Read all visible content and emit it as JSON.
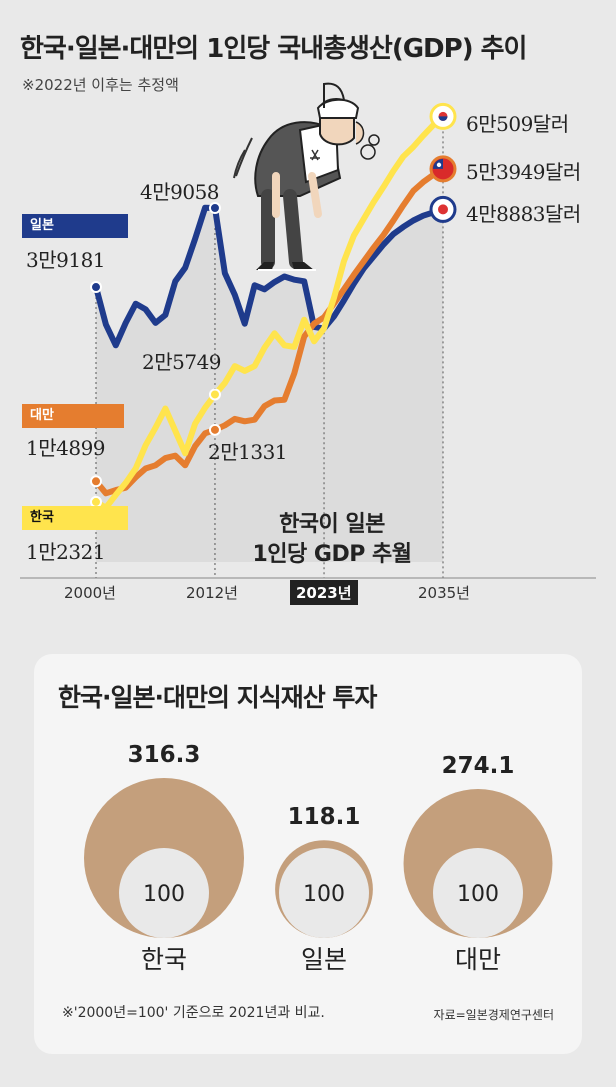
{
  "title": "한국·일본·대만의 1인당 국내총생산(GDP) 추이",
  "note": "※2022년 이후는 추정액",
  "colors": {
    "korea": "#ffe44d",
    "japan": "#1f3b8c",
    "taiwan": "#e57d2f",
    "ip_circle": "#c49f7c",
    "base_circle": "#e9e9e9"
  },
  "gdp_labels": {
    "japan_tag": "일본",
    "japan_start": "3만9181",
    "japan_peak": "4만9058",
    "japan_end": "4만8883달러",
    "taiwan_tag": "대만",
    "taiwan_start": "1만4899",
    "taiwan_2012": "2만1331",
    "taiwan_end": "5만3949달러",
    "korea_tag": "한국",
    "korea_start": "1만2321",
    "korea_2012": "2만5749",
    "korea_end": "6만509달러"
  },
  "x_labels": {
    "y2000": "2000년",
    "y2012": "2012년",
    "y2023": "2023년",
    "y2035": "2035년"
  },
  "overtake": {
    "line1": "한국이 일본",
    "line2": "1인당 GDP 추월"
  },
  "icons": {
    "runner": "exhausted-runner-illustration",
    "flags": [
      "korea-flag-icon",
      "taiwan-flag-icon",
      "japan-flag-icon"
    ]
  },
  "chart_data": [
    {
      "type": "line",
      "title": "한국·일본·대만의 1인당 국내총생산(GDP) 추이",
      "x_ticks": [
        "2000년",
        "2012년",
        "2023년",
        "2035년"
      ],
      "xlim": [
        2000,
        2035
      ],
      "series": [
        {
          "name": "일본",
          "x": [
            2000,
            2001,
            2002,
            2003,
            2004,
            2005,
            2006,
            2007,
            2008,
            2009,
            2010,
            2011,
            2012,
            2013,
            2014,
            2015,
            2016,
            2017,
            2018,
            2019,
            2020,
            2021,
            2022,
            2023,
            2024,
            2025,
            2026,
            2027,
            2028,
            2029,
            2030,
            2031,
            2032,
            2033,
            2034,
            2035
          ],
          "y": [
            39181,
            34500,
            31900,
            34700,
            37100,
            36400,
            34700,
            35700,
            39900,
            41600,
            45200,
            49100,
            49058,
            40900,
            38200,
            34600,
            39400,
            38900,
            39800,
            40500,
            40100,
            39900,
            34200,
            34000,
            35500,
            37500,
            39600,
            41500,
            43000,
            44500,
            45800,
            46700,
            47500,
            48100,
            48500,
            48883
          ]
        },
        {
          "name": "대만",
          "x": [
            2000,
            2001,
            2002,
            2003,
            2004,
            2005,
            2006,
            2007,
            2008,
            2009,
            2010,
            2011,
            2012,
            2013,
            2014,
            2015,
            2016,
            2017,
            2018,
            2019,
            2020,
            2021,
            2022,
            2023,
            2024,
            2025,
            2026,
            2027,
            2028,
            2029,
            2030,
            2031,
            2032,
            2033,
            2034,
            2035
          ],
          "y": [
            14899,
            13400,
            13800,
            14100,
            15400,
            16500,
            16900,
            17800,
            18100,
            16900,
            19300,
            20900,
            21331,
            21900,
            22700,
            22400,
            22600,
            24300,
            25000,
            25100,
            28400,
            33000,
            34600,
            35400,
            37100,
            38900,
            40700,
            42400,
            44100,
            45700,
            47500,
            49400,
            51200,
            52300,
            53200,
            53949
          ]
        },
        {
          "name": "한국",
          "x": [
            2000,
            2001,
            2002,
            2003,
            2004,
            2005,
            2006,
            2007,
            2008,
            2009,
            2010,
            2011,
            2012,
            2013,
            2014,
            2015,
            2016,
            2017,
            2018,
            2019,
            2020,
            2021,
            2022,
            2023,
            2024,
            2025,
            2026,
            2027,
            2028,
            2029,
            2030,
            2031,
            2032,
            2033,
            2034,
            2035
          ],
          "y": [
            12321,
            11600,
            13200,
            14700,
            16500,
            19400,
            21600,
            24000,
            21200,
            18400,
            22100,
            24100,
            25749,
            27200,
            29300,
            28700,
            29300,
            31600,
            33400,
            31900,
            31700,
            35100,
            32400,
            34000,
            37800,
            42400,
            45600,
            47700,
            49800,
            51700,
            53700,
            55500,
            56700,
            58100,
            59400,
            60509
          ]
        }
      ]
    },
    {
      "type": "bubble",
      "title": "한국·일본·대만의 지식재산 투자",
      "categories": [
        "한국",
        "일본",
        "대만"
      ],
      "values": [
        316.3,
        118.1,
        274.1
      ],
      "base": [
        100,
        100,
        100
      ],
      "footnote": "※'2000년=100' 기준으로 2021년과 비교.",
      "source": "자료=일본경제연구센터"
    }
  ]
}
